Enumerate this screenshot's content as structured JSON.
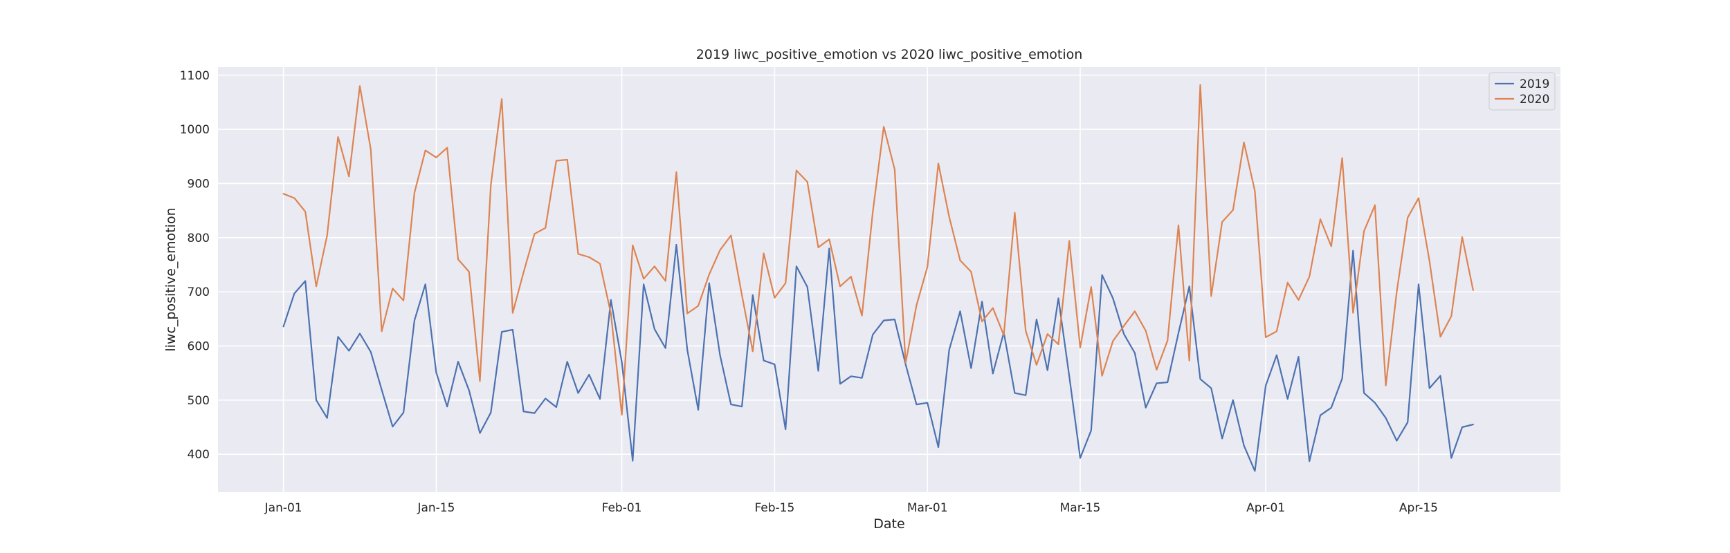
{
  "chart_data": {
    "type": "line",
    "title": "2019 liwc_positive_emotion vs 2020 liwc_positive_emotion",
    "xlabel": "Date",
    "ylabel": "liwc_positive_emotion",
    "x_start": "Jan-01",
    "x_end": "Apr-21",
    "xlim": [
      "Dec-26",
      "Apr-28"
    ],
    "ylim": [
      330,
      1115
    ],
    "x_ticks": [
      "Jan-01",
      "Jan-15",
      "Feb-01",
      "Feb-15",
      "Mar-01",
      "Mar-15",
      "Apr-01",
      "Apr-15"
    ],
    "y_ticks": [
      400,
      500,
      600,
      700,
      800,
      900,
      1000,
      1100
    ],
    "grid": true,
    "legend": "top-right",
    "colors": {
      "2019": "#4c72b0",
      "2020": "#dd8452",
      "background": "#eaeaf2",
      "grid": "#ffffff"
    },
    "series": [
      {
        "name": "2019",
        "values": [
          636,
          697,
          720,
          500,
          467,
          617,
          591,
          623,
          589,
          519,
          451,
          477,
          647,
          714,
          551,
          488,
          571,
          518,
          439,
          477,
          626,
          630,
          479,
          476,
          503,
          487,
          571,
          513,
          547,
          502,
          685,
          570,
          388,
          714,
          631,
          596,
          787,
          593,
          482,
          716,
          583,
          492,
          488,
          694,
          573,
          566,
          446,
          747,
          709,
          554,
          780,
          530,
          544,
          541,
          621,
          647,
          649,
          566,
          492,
          495,
          413,
          593,
          664,
          559,
          682,
          549,
          625,
          513,
          509,
          649,
          555,
          688,
          544,
          393,
          444,
          731,
          688,
          622,
          587,
          486,
          531,
          533,
          624,
          710,
          539,
          522,
          429,
          500,
          416,
          369,
          527,
          583,
          502,
          580,
          387,
          472,
          486,
          540,
          776,
          513,
          495,
          467,
          425,
          459,
          714,
          522,
          545,
          393,
          450,
          455
        ]
      },
      {
        "name": "2020",
        "values": [
          881,
          873,
          848,
          710,
          804,
          986,
          913,
          1080,
          963,
          627,
          706,
          684,
          883,
          961,
          948,
          966,
          760,
          737,
          535,
          897,
          1056,
          661,
          736,
          807,
          818,
          942,
          944,
          770,
          764,
          752,
          660,
          473,
          786,
          724,
          747,
          720,
          921,
          660,
          674,
          732,
          777,
          804,
          694,
          590,
          771,
          689,
          716,
          924,
          903,
          782,
          797,
          710,
          728,
          656,
          848,
          1005,
          926,
          569,
          675,
          746,
          937,
          838,
          758,
          737,
          645,
          670,
          620,
          846,
          628,
          565,
          622,
          603,
          794,
          597,
          709,
          545,
          609,
          637,
          664,
          628,
          556,
          610,
          823,
          573,
          1082,
          692,
          829,
          851,
          976,
          886,
          616,
          627,
          717,
          685,
          728,
          834,
          784,
          947,
          661,
          812,
          860,
          527,
          700,
          837,
          873,
          757,
          617,
          655,
          801,
          703
        ]
      }
    ]
  }
}
